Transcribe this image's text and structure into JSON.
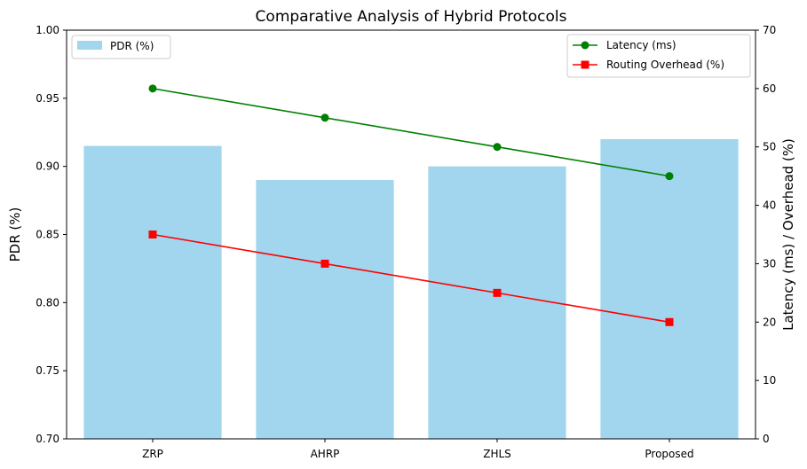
{
  "chart_data": {
    "type": "bar",
    "title": "Comparative Analysis of Hybrid Protocols",
    "categories": [
      "ZRP",
      "AHRP",
      "ZHLS",
      "Proposed"
    ],
    "bar_series": {
      "name": "PDR (%)",
      "values": [
        0.915,
        0.89,
        0.9,
        0.92
      ],
      "color": "#a1d6ee"
    },
    "line_series": [
      {
        "name": "Latency (ms)",
        "values": [
          60,
          55,
          50,
          45
        ],
        "color": "#008000",
        "marker": "circle"
      },
      {
        "name": "Routing Overhead (%)",
        "values": [
          35,
          30,
          25,
          20
        ],
        "color": "#ff0000",
        "marker": "square"
      }
    ],
    "left_axis": {
      "label": "PDR (%)",
      "ylim": [
        0.7,
        1.0
      ],
      "ticks": [
        0.7,
        0.75,
        0.8,
        0.85,
        0.9,
        0.95,
        1.0
      ],
      "tick_labels": [
        "0.70",
        "0.75",
        "0.80",
        "0.85",
        "0.90",
        "0.95",
        "1.00"
      ]
    },
    "right_axis": {
      "label": "Latency (ms) / Overhead (%)",
      "ylim": [
        0,
        70
      ],
      "ticks": [
        0,
        10,
        20,
        30,
        40,
        50,
        60,
        70
      ],
      "tick_labels": [
        "0",
        "10",
        "20",
        "30",
        "40",
        "50",
        "60",
        "70"
      ]
    },
    "grid": false,
    "legends": {
      "bars": "upper-left",
      "lines": "upper-right"
    }
  }
}
